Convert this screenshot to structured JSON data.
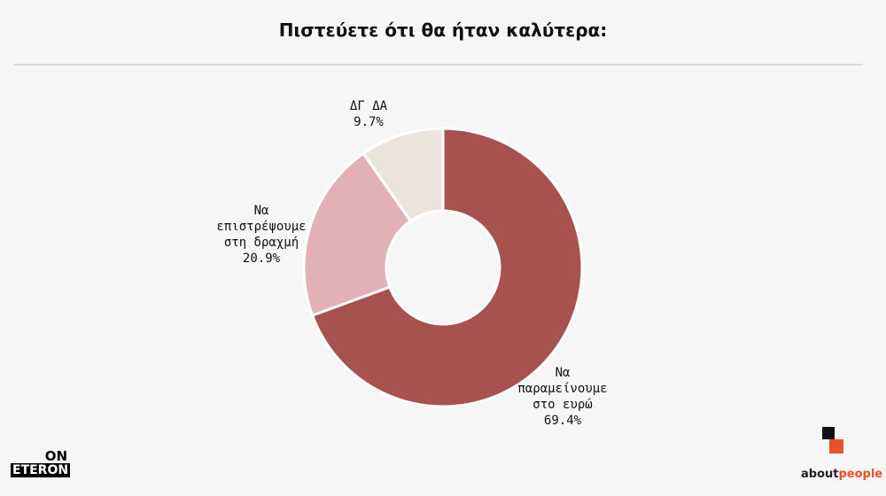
{
  "chart_data": {
    "type": "pie",
    "title": "Πιστεύετε ότι θα ήταν καλύτερα:",
    "donut": true,
    "slices": [
      {
        "label": "Να παραμείνουμε στο ευρώ",
        "value": 69.4,
        "pct_label": "69.4%",
        "color": "#a85250"
      },
      {
        "label": "Να επιστρέψουμε στη δραχμή",
        "value": 20.9,
        "pct_label": "20.9%",
        "color": "#e2b1b8"
      },
      {
        "label": "ΔΓ ΔΑ",
        "value": 9.7,
        "pct_label": "9.7%",
        "color": "#eae4dd"
      }
    ]
  },
  "labels": {
    "slice0_lines": [
      "Να",
      "παραμείνουμε",
      "στο ευρώ"
    ],
    "slice1_lines": [
      "Να",
      "επιστρέψουμε",
      "στη δραχμή"
    ],
    "slice2_lines": [
      "ΔΓ ΔΑ"
    ]
  },
  "branding": {
    "left_logo_top": "ON",
    "left_logo_bottom": "ETERON",
    "right_logo_prefix": "about",
    "right_logo_suffix": "people",
    "accent_color": "#e8512b"
  }
}
